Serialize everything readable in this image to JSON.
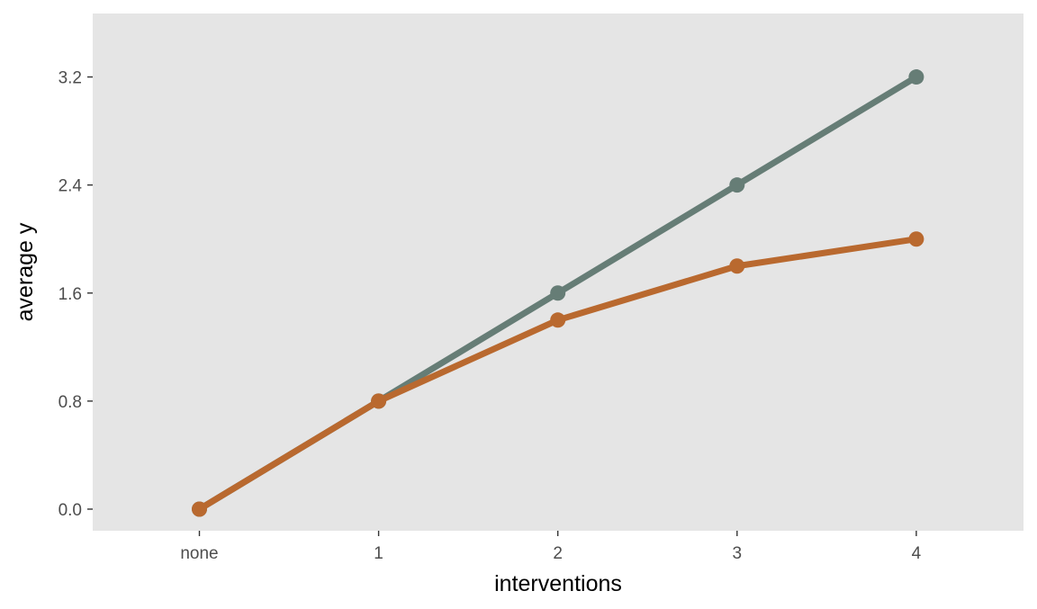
{
  "chart_data": {
    "type": "line",
    "categories": [
      "none",
      "1",
      "2",
      "3",
      "4"
    ],
    "series": [
      {
        "color": "#667d76",
        "values": [
          0.0,
          0.8,
          1.6,
          2.4,
          3.2
        ]
      },
      {
        "color": "#b9692f",
        "values": [
          0.0,
          0.8,
          1.4,
          1.8,
          2.0
        ]
      }
    ],
    "xlabel": "interventions",
    "ylabel": "average y",
    "y_ticks": [
      0.0,
      0.8,
      1.6,
      2.4,
      3.2
    ],
    "y_tick_labels": [
      "0.0",
      "0.8",
      "1.6",
      "2.4",
      "3.2"
    ],
    "ylim": [
      -0.16,
      3.67
    ],
    "grid": false,
    "legend": "none",
    "panel_color": "#e5e5e5",
    "axis_text_color": "#4d4d4d",
    "axis_title_color": "#000000"
  }
}
